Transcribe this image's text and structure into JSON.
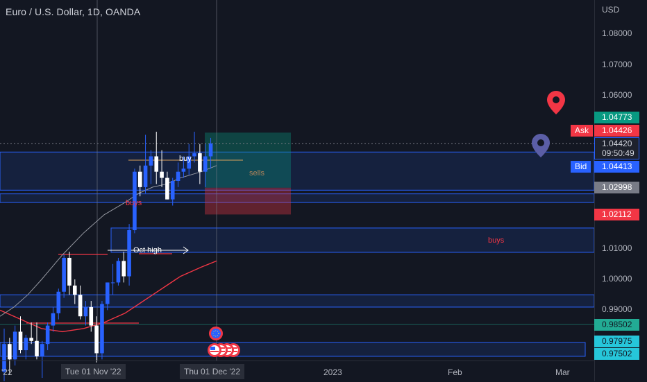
{
  "title": "Euro / U.S. Dollar, 1D, OANDA",
  "price_axis": {
    "unit": "USD",
    "ticks": [
      "1.08000",
      "1.07000",
      "1.06000",
      "1.01000",
      "1.00000",
      "0.99000"
    ],
    "tags": [
      {
        "name": "tag-1-04773",
        "text": "1.04773",
        "bg": "#089981",
        "fg": "#ffffff"
      },
      {
        "name": "tag-1-02998",
        "text": "1.02998",
        "bg": "#787b86",
        "fg": "#ffffff"
      },
      {
        "name": "tag-1-02112",
        "text": "1.02112",
        "bg": "#f23645",
        "fg": "#ffffff"
      },
      {
        "name": "tag-0-98502",
        "text": "0.98502",
        "bg": "#22ab94",
        "fg": "#131722"
      },
      {
        "name": "tag-0-97975",
        "text": "0.97975",
        "bg": "#26c6da",
        "fg": "#131722"
      },
      {
        "name": "tag-0-97502",
        "text": "0.97502",
        "bg": "#26c6da",
        "fg": "#131722"
      }
    ],
    "ask": {
      "label": "Ask",
      "value": "1.04426",
      "color": "#f23645"
    },
    "bid": {
      "label": "Bid",
      "value": "1.04413",
      "color": "#2962ff"
    },
    "last": {
      "value": "1.04420",
      "countdown": "09:50:49"
    }
  },
  "time_axis": {
    "labels": [
      "'22",
      "2023",
      "Feb",
      "Mar"
    ],
    "crosshair_labels": [
      "Tue 01 Nov '22",
      "Thu 01 Dec '22"
    ]
  },
  "annotations": {
    "buy": "buy",
    "sells": "sells",
    "buys_left": "buys",
    "buys_right": "buys",
    "oct_high": "Oct high"
  },
  "chart_data": {
    "type": "candlestick",
    "symbol": "EURUSD",
    "interval": "1D",
    "ylim": [
      0.973,
      1.088
    ],
    "candles": [
      {
        "o": 0.97,
        "h": 0.984,
        "l": 0.964,
        "c": 0.979
      },
      {
        "o": 0.979,
        "h": 0.981,
        "l": 0.969,
        "c": 0.974
      },
      {
        "o": 0.974,
        "h": 0.985,
        "l": 0.972,
        "c": 0.983
      },
      {
        "o": 0.983,
        "h": 0.988,
        "l": 0.976,
        "c": 0.977
      },
      {
        "o": 0.977,
        "h": 0.982,
        "l": 0.974,
        "c": 0.981
      },
      {
        "o": 0.981,
        "h": 0.986,
        "l": 0.979,
        "c": 0.98
      },
      {
        "o": 0.98,
        "h": 0.986,
        "l": 0.974,
        "c": 0.975
      },
      {
        "o": 0.975,
        "h": 0.98,
        "l": 0.968,
        "c": 0.979
      },
      {
        "o": 0.979,
        "h": 0.986,
        "l": 0.977,
        "c": 0.985
      },
      {
        "o": 0.985,
        "h": 0.991,
        "l": 0.983,
        "c": 0.989
      },
      {
        "o": 0.989,
        "h": 0.997,
        "l": 0.987,
        "c": 0.996
      },
      {
        "o": 0.996,
        "h": 1.008,
        "l": 0.994,
        "c": 1.007
      },
      {
        "o": 1.007,
        "h": 1.009,
        "l": 0.995,
        "c": 0.998
      },
      {
        "o": 0.998,
        "h": 1.0,
        "l": 0.992,
        "c": 0.995
      },
      {
        "o": 0.995,
        "h": 0.998,
        "l": 0.987,
        "c": 0.988
      },
      {
        "o": 0.988,
        "h": 0.993,
        "l": 0.985,
        "c": 0.991
      },
      {
        "o": 0.991,
        "h": 0.993,
        "l": 0.983,
        "c": 0.985
      },
      {
        "o": 0.985,
        "h": 0.988,
        "l": 0.973,
        "c": 0.976
      },
      {
        "o": 0.976,
        "h": 0.993,
        "l": 0.974,
        "c": 0.992
      },
      {
        "o": 0.992,
        "h": 0.999,
        "l": 0.99,
        "c": 0.999
      },
      {
        "o": 0.999,
        "h": 1.005,
        "l": 0.995,
        "c": 0.999
      },
      {
        "o": 0.999,
        "h": 1.007,
        "l": 0.998,
        "c": 1.006
      },
      {
        "o": 1.006,
        "h": 1.009,
        "l": 0.999,
        "c": 1.001
      },
      {
        "o": 1.001,
        "h": 1.018,
        "l": 0.998,
        "c": 1.016
      },
      {
        "o": 1.016,
        "h": 1.036,
        "l": 1.015,
        "c": 1.035
      },
      {
        "o": 1.035,
        "h": 1.037,
        "l": 1.027,
        "c": 1.03
      },
      {
        "o": 1.03,
        "h": 1.047,
        "l": 1.028,
        "c": 1.037
      },
      {
        "o": 1.037,
        "h": 1.042,
        "l": 1.031,
        "c": 1.04
      },
      {
        "o": 1.04,
        "h": 1.048,
        "l": 1.031,
        "c": 1.035
      },
      {
        "o": 1.035,
        "h": 1.042,
        "l": 1.03,
        "c": 1.033
      },
      {
        "o": 1.033,
        "h": 1.035,
        "l": 1.026,
        "c": 1.026
      },
      {
        "o": 1.026,
        "h": 1.033,
        "l": 1.024,
        "c": 1.032
      },
      {
        "o": 1.032,
        "h": 1.038,
        "l": 1.03,
        "c": 1.035
      },
      {
        "o": 1.035,
        "h": 1.04,
        "l": 1.033,
        "c": 1.036
      },
      {
        "o": 1.036,
        "h": 1.044,
        "l": 1.034,
        "c": 1.04
      },
      {
        "o": 1.04,
        "h": 1.048,
        "l": 1.038,
        "c": 1.041
      },
      {
        "o": 1.041,
        "h": 1.044,
        "l": 1.031,
        "c": 1.035
      },
      {
        "o": 1.035,
        "h": 1.044,
        "l": 1.03,
        "c": 1.04
      },
      {
        "o": 1.04,
        "h": 1.046,
        "l": 1.036,
        "c": 1.0442
      }
    ],
    "zones": [
      {
        "name": "supply-zone-upper",
        "y1": 1.0414,
        "y2": 1.029
      },
      {
        "name": "demand-zone-mid",
        "y1": 1.0278,
        "y2": 1.025
      },
      {
        "name": "demand-zone-buys",
        "y1": 1.0167,
        "y2": 1.0088
      },
      {
        "name": "demand-zone-low",
        "y1": 0.995,
        "y2": 0.991
      },
      {
        "name": "demand-zone-bottom",
        "y1": 0.9795,
        "y2": 0.975
      }
    ],
    "position": {
      "entry": 1.0298,
      "target": 1.0477,
      "stop": 1.0211
    },
    "ma_red": [
      0.99,
      0.988,
      0.986,
      0.984,
      0.983,
      0.984,
      0.986,
      0.989,
      0.992,
      0.995,
      0.998,
      1.001,
      1.004,
      1.006
    ],
    "ma_grey": [
      0.988,
      0.991,
      0.995,
      1.0,
      1.008,
      1.015,
      1.021,
      1.025,
      1.028,
      1.03,
      1.031,
      1.033,
      1.035,
      1.037
    ]
  }
}
